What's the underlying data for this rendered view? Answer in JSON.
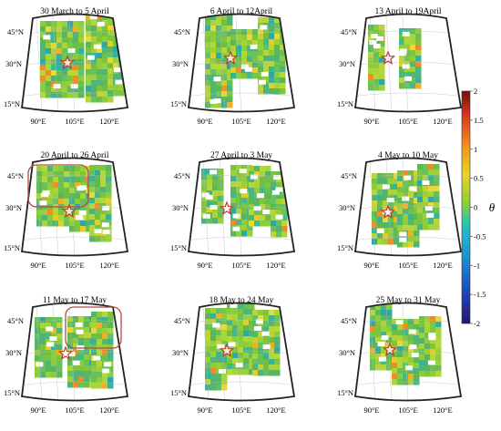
{
  "panels": [
    {
      "title": "30 March to 5 April",
      "lat_labels": [
        "45°N",
        "30°N",
        "15°N"
      ],
      "lon_labels": [
        "90°E",
        "105°E",
        "120°E"
      ]
    },
    {
      "title": "6 April to 12April",
      "lat_labels": [
        "45°N",
        "30°N",
        "15°N"
      ],
      "lon_labels": [
        "90°E",
        "105°E",
        "120°E"
      ]
    },
    {
      "title": "13 April to 19April",
      "lat_labels": [
        "45°N",
        "30°N",
        "15°N"
      ],
      "lon_labels": [
        "90°E",
        "105°E",
        "120°E"
      ]
    },
    {
      "title": "20 April to 26 April",
      "lat_labels": [
        "45°N",
        "30°N",
        "15°N"
      ],
      "lon_labels": [
        "90°E",
        "105°E",
        "120°E"
      ]
    },
    {
      "title": "27 April to 3 May",
      "lat_labels": [
        "45°N",
        "30°N",
        "15°N"
      ],
      "lon_labels": [
        "90°E",
        "105°E",
        "120°E"
      ]
    },
    {
      "title": "4 May to 10 May",
      "lat_labels": [
        "45°N",
        "30°N",
        "15°N"
      ],
      "lon_labels": [
        "90°E",
        "105°E",
        "120°E"
      ]
    },
    {
      "title": "11 May to 17 May",
      "lat_labels": [
        "45°N",
        "30°N",
        "15°N"
      ],
      "lon_labels": [
        "90°E",
        "105°E",
        "120°E"
      ]
    },
    {
      "title": "18 May to 24 May",
      "lat_labels": [
        "45°N",
        "30°N",
        "15°N"
      ],
      "lon_labels": [
        "90°E",
        "105°E",
        "120°E"
      ]
    },
    {
      "title": "25 May to 31 May",
      "lat_labels": [
        "45°N",
        "30°N",
        "15°N"
      ],
      "lon_labels": [
        "90°E",
        "105°E",
        "120°E"
      ]
    }
  ],
  "colorbar": {
    "label": "θ",
    "ticks": [
      "2",
      "1.5",
      "1",
      "0.5",
      "0",
      "-0.5",
      "-1",
      "-1.5",
      "-2"
    ],
    "range": [
      -2,
      2
    ],
    "colors": [
      "#2a1466",
      "#1f3fb8",
      "#1a8fd6",
      "#20c4c0",
      "#8ecf3a",
      "#e8d424",
      "#f5951e",
      "#d8321c",
      "#7a0c12"
    ]
  },
  "highlight_boxes": [
    {
      "panel": 3,
      "outline_color": "#b04a4a"
    },
    {
      "panel": 6,
      "outline_color": "#b04a4a"
    }
  ],
  "marker": {
    "icon": "star-icon",
    "color": "#c0392b"
  }
}
